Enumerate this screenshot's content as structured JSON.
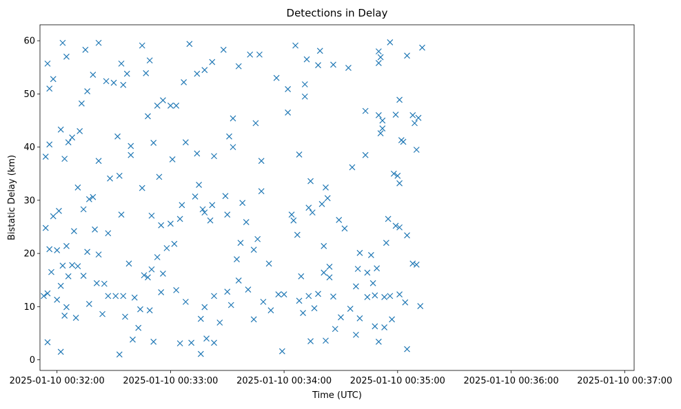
{
  "chart_data": {
    "type": "scatter",
    "title": "Detections in Delay",
    "xlabel": "Time (UTC)",
    "ylabel": "Bistatic Delay (km)",
    "marker": "x",
    "color": "#1f77b4",
    "grid": false,
    "xlim": [
      "2025-01-10 00:31:51",
      "2025-01-10 00:37:05"
    ],
    "ylim": [
      -2,
      63
    ],
    "xticks": [
      {
        "t": "2025-01-10 00:32:00",
        "label": "2025-01-10 00:32:00"
      },
      {
        "t": "2025-01-10 00:33:00",
        "label": "2025-01-10 00:33:00"
      },
      {
        "t": "2025-01-10 00:34:00",
        "label": "2025-01-10 00:34:00"
      },
      {
        "t": "2025-01-10 00:35:00",
        "label": "2025-01-10 00:35:00"
      },
      {
        "t": "2025-01-10 00:36:00",
        "label": "2025-01-10 00:36:00"
      },
      {
        "t": "2025-01-10 00:37:00",
        "label": "2025-01-10 00:37:00"
      }
    ],
    "yticks": [
      0,
      10,
      20,
      30,
      40,
      50,
      60
    ],
    "points": [
      [
        "2025-01-10 00:31:53",
        12
      ],
      [
        "2025-01-10 00:31:54",
        24.8
      ],
      [
        "2025-01-10 00:31:54",
        38.2
      ],
      [
        "2025-01-10 00:31:55",
        3.3
      ],
      [
        "2025-01-10 00:31:55",
        55.7
      ],
      [
        "2025-01-10 00:31:55",
        12.5
      ],
      [
        "2025-01-10 00:31:56",
        51
      ],
      [
        "2025-01-10 00:31:56",
        40.5
      ],
      [
        "2025-01-10 00:31:56",
        20.8
      ],
      [
        "2025-01-10 00:31:57",
        16.5
      ],
      [
        "2025-01-10 00:31:58",
        52.8
      ],
      [
        "2025-01-10 00:31:58",
        27
      ],
      [
        "2025-01-10 00:32:00",
        11.3
      ],
      [
        "2025-01-10 00:32:00",
        20.6
      ],
      [
        "2025-01-10 00:32:01",
        28
      ],
      [
        "2025-01-10 00:32:02",
        43.3
      ],
      [
        "2025-01-10 00:32:02",
        13.9
      ],
      [
        "2025-01-10 00:32:02",
        1.5
      ],
      [
        "2025-01-10 00:32:03",
        17.7
      ],
      [
        "2025-01-10 00:32:03",
        59.6
      ],
      [
        "2025-01-10 00:32:04",
        37.8
      ],
      [
        "2025-01-10 00:32:04",
        8.3
      ],
      [
        "2025-01-10 00:32:05",
        57
      ],
      [
        "2025-01-10 00:32:05",
        21.4
      ],
      [
        "2025-01-10 00:32:05",
        9.9
      ],
      [
        "2025-01-10 00:32:06",
        40.9
      ],
      [
        "2025-01-10 00:32:06",
        15.7
      ],
      [
        "2025-01-10 00:32:08",
        41.8
      ],
      [
        "2025-01-10 00:32:08",
        17.8
      ],
      [
        "2025-01-10 00:32:09",
        24.2
      ],
      [
        "2025-01-10 00:32:10",
        7.9
      ],
      [
        "2025-01-10 00:32:11",
        32.4
      ],
      [
        "2025-01-10 00:32:11",
        17.6
      ],
      [
        "2025-01-10 00:32:12",
        43
      ],
      [
        "2025-01-10 00:32:13",
        48.2
      ],
      [
        "2025-01-10 00:32:14",
        28.3
      ],
      [
        "2025-01-10 00:32:14",
        15.8
      ],
      [
        "2025-01-10 00:32:15",
        58.3
      ],
      [
        "2025-01-10 00:32:16",
        50.5
      ],
      [
        "2025-01-10 00:32:16",
        20.3
      ],
      [
        "2025-01-10 00:32:17",
        30.2
      ],
      [
        "2025-01-10 00:32:17",
        10.5
      ],
      [
        "2025-01-10 00:32:19",
        30.6
      ],
      [
        "2025-01-10 00:32:19",
        53.6
      ],
      [
        "2025-01-10 00:32:20",
        24.5
      ],
      [
        "2025-01-10 00:32:21",
        14.4
      ],
      [
        "2025-01-10 00:32:22",
        59.6
      ],
      [
        "2025-01-10 00:32:22",
        37.4
      ],
      [
        "2025-01-10 00:32:22",
        19.8
      ],
      [
        "2025-01-10 00:32:24",
        8.6
      ],
      [
        "2025-01-10 00:32:25",
        14.3
      ],
      [
        "2025-01-10 00:32:26",
        52.4
      ],
      [
        "2025-01-10 00:32:27",
        23.8
      ],
      [
        "2025-01-10 00:32:27",
        12
      ],
      [
        "2025-01-10 00:32:28",
        34.1
      ],
      [
        "2025-01-10 00:32:30",
        52.1
      ],
      [
        "2025-01-10 00:32:31",
        12
      ],
      [
        "2025-01-10 00:32:32",
        42
      ],
      [
        "2025-01-10 00:32:33",
        34.6
      ],
      [
        "2025-01-10 00:32:33",
        1
      ],
      [
        "2025-01-10 00:32:34",
        55.7
      ],
      [
        "2025-01-10 00:32:34",
        27.3
      ],
      [
        "2025-01-10 00:32:35",
        51.7
      ],
      [
        "2025-01-10 00:32:35",
        12
      ],
      [
        "2025-01-10 00:32:36",
        8.1
      ],
      [
        "2025-01-10 00:32:37",
        53.8
      ],
      [
        "2025-01-10 00:32:38",
        18.1
      ],
      [
        "2025-01-10 00:32:39",
        40.2
      ],
      [
        "2025-01-10 00:32:39",
        38.5
      ],
      [
        "2025-01-10 00:32:40",
        3.8
      ],
      [
        "2025-01-10 00:32:41",
        11.7
      ],
      [
        "2025-01-10 00:32:43",
        6
      ],
      [
        "2025-01-10 00:32:44",
        9.5
      ],
      [
        "2025-01-10 00:32:45",
        59.1
      ],
      [
        "2025-01-10 00:32:45",
        32.3
      ],
      [
        "2025-01-10 00:32:46",
        15.9
      ],
      [
        "2025-01-10 00:32:47",
        53.9
      ],
      [
        "2025-01-10 00:32:48",
        45.8
      ],
      [
        "2025-01-10 00:32:48",
        15.5
      ],
      [
        "2025-01-10 00:32:49",
        9.3
      ],
      [
        "2025-01-10 00:32:49",
        56.3
      ],
      [
        "2025-01-10 00:32:50",
        27.1
      ],
      [
        "2025-01-10 00:32:50",
        17
      ],
      [
        "2025-01-10 00:32:51",
        40.8
      ],
      [
        "2025-01-10 00:32:51",
        3.4
      ],
      [
        "2025-01-10 00:32:53",
        47.8
      ],
      [
        "2025-01-10 00:32:53",
        19.3
      ],
      [
        "2025-01-10 00:32:54",
        34.4
      ],
      [
        "2025-01-10 00:32:55",
        25.3
      ],
      [
        "2025-01-10 00:32:55",
        12.7
      ],
      [
        "2025-01-10 00:32:56",
        48.8
      ],
      [
        "2025-01-10 00:32:56",
        16.2
      ],
      [
        "2025-01-10 00:32:58",
        21
      ],
      [
        "2025-01-10 00:33:00",
        47.8
      ],
      [
        "2025-01-10 00:33:00",
        25.6
      ],
      [
        "2025-01-10 00:33:01",
        37.7
      ],
      [
        "2025-01-10 00:33:02",
        21.8
      ],
      [
        "2025-01-10 00:33:03",
        47.8
      ],
      [
        "2025-01-10 00:33:03",
        13.1
      ],
      [
        "2025-01-10 00:33:05",
        26.5
      ],
      [
        "2025-01-10 00:33:05",
        3.1
      ],
      [
        "2025-01-10 00:33:06",
        29.1
      ],
      [
        "2025-01-10 00:33:07",
        52.2
      ],
      [
        "2025-01-10 00:33:08",
        40.9
      ],
      [
        "2025-01-10 00:33:08",
        10.9
      ],
      [
        "2025-01-10 00:33:10",
        59.4
      ],
      [
        "2025-01-10 00:33:11",
        3.2
      ],
      [
        "2025-01-10 00:33:13",
        30.7
      ],
      [
        "2025-01-10 00:33:14",
        53.8
      ],
      [
        "2025-01-10 00:33:14",
        38.8
      ],
      [
        "2025-01-10 00:33:15",
        32.9
      ],
      [
        "2025-01-10 00:33:16",
        7.7
      ],
      [
        "2025-01-10 00:33:16",
        1.1
      ],
      [
        "2025-01-10 00:33:17",
        28.3
      ],
      [
        "2025-01-10 00:33:18",
        54.5
      ],
      [
        "2025-01-10 00:33:18",
        27.7
      ],
      [
        "2025-01-10 00:33:18",
        9.9
      ],
      [
        "2025-01-10 00:33:19",
        4
      ],
      [
        "2025-01-10 00:33:21",
        26.2
      ],
      [
        "2025-01-10 00:33:22",
        56
      ],
      [
        "2025-01-10 00:33:22",
        29.1
      ],
      [
        "2025-01-10 00:33:23",
        38.3
      ],
      [
        "2025-01-10 00:33:23",
        12
      ],
      [
        "2025-01-10 00:33:23",
        3.2
      ],
      [
        "2025-01-10 00:33:26",
        7
      ],
      [
        "2025-01-10 00:33:28",
        58.3
      ],
      [
        "2025-01-10 00:33:29",
        30.8
      ],
      [
        "2025-01-10 00:33:30",
        27.3
      ],
      [
        "2025-01-10 00:33:30",
        12.8
      ],
      [
        "2025-01-10 00:33:31",
        42
      ],
      [
        "2025-01-10 00:33:32",
        10.3
      ],
      [
        "2025-01-10 00:33:33",
        45.4
      ],
      [
        "2025-01-10 00:33:33",
        40
      ],
      [
        "2025-01-10 00:33:35",
        18.9
      ],
      [
        "2025-01-10 00:33:36",
        55.2
      ],
      [
        "2025-01-10 00:33:36",
        14.9
      ],
      [
        "2025-01-10 00:33:37",
        22
      ],
      [
        "2025-01-10 00:33:38",
        29.5
      ],
      [
        "2025-01-10 00:33:40",
        25.9
      ],
      [
        "2025-01-10 00:33:41",
        13.2
      ],
      [
        "2025-01-10 00:33:42",
        57.4
      ],
      [
        "2025-01-10 00:33:44",
        20.7
      ],
      [
        "2025-01-10 00:33:44",
        7.6
      ],
      [
        "2025-01-10 00:33:45",
        44.5
      ],
      [
        "2025-01-10 00:33:46",
        22.7
      ],
      [
        "2025-01-10 00:33:47",
        57.4
      ],
      [
        "2025-01-10 00:33:48",
        37.4
      ],
      [
        "2025-01-10 00:33:48",
        31.7
      ],
      [
        "2025-01-10 00:33:49",
        10.9
      ],
      [
        "2025-01-10 00:33:52",
        18.1
      ],
      [
        "2025-01-10 00:33:53",
        9.3
      ],
      [
        "2025-01-10 00:33:56",
        53
      ],
      [
        "2025-01-10 00:33:57",
        12.3
      ],
      [
        "2025-01-10 00:33:59",
        1.6
      ],
      [
        "2025-01-10 00:34:00",
        12.3
      ],
      [
        "2025-01-10 00:34:02",
        50.9
      ],
      [
        "2025-01-10 00:34:02",
        46.5
      ],
      [
        "2025-01-10 00:34:04",
        27.3
      ],
      [
        "2025-01-10 00:34:05",
        26.2
      ],
      [
        "2025-01-10 00:34:06",
        59.1
      ],
      [
        "2025-01-10 00:34:07",
        23.5
      ],
      [
        "2025-01-10 00:34:08",
        38.6
      ],
      [
        "2025-01-10 00:34:08",
        11.1
      ],
      [
        "2025-01-10 00:34:09",
        15.7
      ],
      [
        "2025-01-10 00:34:10",
        8.8
      ],
      [
        "2025-01-10 00:34:11",
        51.8
      ],
      [
        "2025-01-10 00:34:11",
        49.5
      ],
      [
        "2025-01-10 00:34:12",
        56.5
      ],
      [
        "2025-01-10 00:34:13",
        28.6
      ],
      [
        "2025-01-10 00:34:13",
        12
      ],
      [
        "2025-01-10 00:34:14",
        33.6
      ],
      [
        "2025-01-10 00:34:14",
        3.5
      ],
      [
        "2025-01-10 00:34:15",
        27.7
      ],
      [
        "2025-01-10 00:34:16",
        9.7
      ],
      [
        "2025-01-10 00:34:18",
        12.4
      ],
      [
        "2025-01-10 00:34:18",
        55.4
      ],
      [
        "2025-01-10 00:34:19",
        58.1
      ],
      [
        "2025-01-10 00:34:20",
        29.3
      ],
      [
        "2025-01-10 00:34:21",
        16.4
      ],
      [
        "2025-01-10 00:34:21",
        21.4
      ],
      [
        "2025-01-10 00:34:22",
        32.4
      ],
      [
        "2025-01-10 00:34:22",
        3.6
      ],
      [
        "2025-01-10 00:34:23",
        30.4
      ],
      [
        "2025-01-10 00:34:24",
        17.5
      ],
      [
        "2025-01-10 00:34:24",
        15.5
      ],
      [
        "2025-01-10 00:34:26",
        55.5
      ],
      [
        "2025-01-10 00:34:26",
        11.9
      ],
      [
        "2025-01-10 00:34:27",
        5.8
      ],
      [
        "2025-01-10 00:34:29",
        26.3
      ],
      [
        "2025-01-10 00:34:30",
        8
      ],
      [
        "2025-01-10 00:34:32",
        24.7
      ],
      [
        "2025-01-10 00:34:34",
        54.9
      ],
      [
        "2025-01-10 00:34:35",
        9.6
      ],
      [
        "2025-01-10 00:34:36",
        36.2
      ],
      [
        "2025-01-10 00:34:38",
        4.7
      ],
      [
        "2025-01-10 00:34:38",
        13.8
      ],
      [
        "2025-01-10 00:34:39",
        17.1
      ],
      [
        "2025-01-10 00:34:40",
        20.1
      ],
      [
        "2025-01-10 00:34:40",
        7.8
      ],
      [
        "2025-01-10 00:34:43",
        46.8
      ],
      [
        "2025-01-10 00:34:43",
        38.5
      ],
      [
        "2025-01-10 00:34:44",
        16.4
      ],
      [
        "2025-01-10 00:34:44",
        11.8
      ],
      [
        "2025-01-10 00:34:46",
        19.7
      ],
      [
        "2025-01-10 00:34:47",
        14.4
      ],
      [
        "2025-01-10 00:34:48",
        6.3
      ],
      [
        "2025-01-10 00:34:48",
        12.1
      ],
      [
        "2025-01-10 00:34:49",
        17.2
      ],
      [
        "2025-01-10 00:34:50",
        46
      ],
      [
        "2025-01-10 00:34:50",
        3.4
      ],
      [
        "2025-01-10 00:34:50",
        58
      ],
      [
        "2025-01-10 00:34:50",
        55.8
      ],
      [
        "2025-01-10 00:34:51",
        42.6
      ],
      [
        "2025-01-10 00:34:51",
        56.9
      ],
      [
        "2025-01-10 00:34:52",
        43.5
      ],
      [
        "2025-01-10 00:34:52",
        45
      ],
      [
        "2025-01-10 00:34:53",
        6.1
      ],
      [
        "2025-01-10 00:34:53",
        11.8
      ],
      [
        "2025-01-10 00:34:54",
        22
      ],
      [
        "2025-01-10 00:34:55",
        26.5
      ],
      [
        "2025-01-10 00:34:56",
        12
      ],
      [
        "2025-01-10 00:34:56",
        59.7
      ],
      [
        "2025-01-10 00:34:57",
        7.6
      ],
      [
        "2025-01-10 00:34:58",
        35
      ],
      [
        "2025-01-10 00:34:59",
        46.1
      ],
      [
        "2025-01-10 00:34:59",
        25.2
      ],
      [
        "2025-01-10 00:35:00",
        34.6
      ],
      [
        "2025-01-10 00:35:01",
        48.9
      ],
      [
        "2025-01-10 00:35:01",
        33.2
      ],
      [
        "2025-01-10 00:35:01",
        24.9
      ],
      [
        "2025-01-10 00:35:01",
        12.3
      ],
      [
        "2025-01-10 00:35:02",
        41.3
      ],
      [
        "2025-01-10 00:35:03",
        41
      ],
      [
        "2025-01-10 00:35:04",
        10.8
      ],
      [
        "2025-01-10 00:35:05",
        57.2
      ],
      [
        "2025-01-10 00:35:05",
        23.4
      ],
      [
        "2025-01-10 00:35:05",
        2
      ],
      [
        "2025-01-10 00:35:08",
        46
      ],
      [
        "2025-01-10 00:35:08",
        18.1
      ],
      [
        "2025-01-10 00:35:09",
        44.5
      ],
      [
        "2025-01-10 00:35:10",
        39.5
      ],
      [
        "2025-01-10 00:35:10",
        17.9
      ],
      [
        "2025-01-10 00:35:11",
        45.5
      ],
      [
        "2025-01-10 00:35:12",
        10.1
      ],
      [
        "2025-01-10 00:35:13",
        58.7
      ]
    ]
  }
}
